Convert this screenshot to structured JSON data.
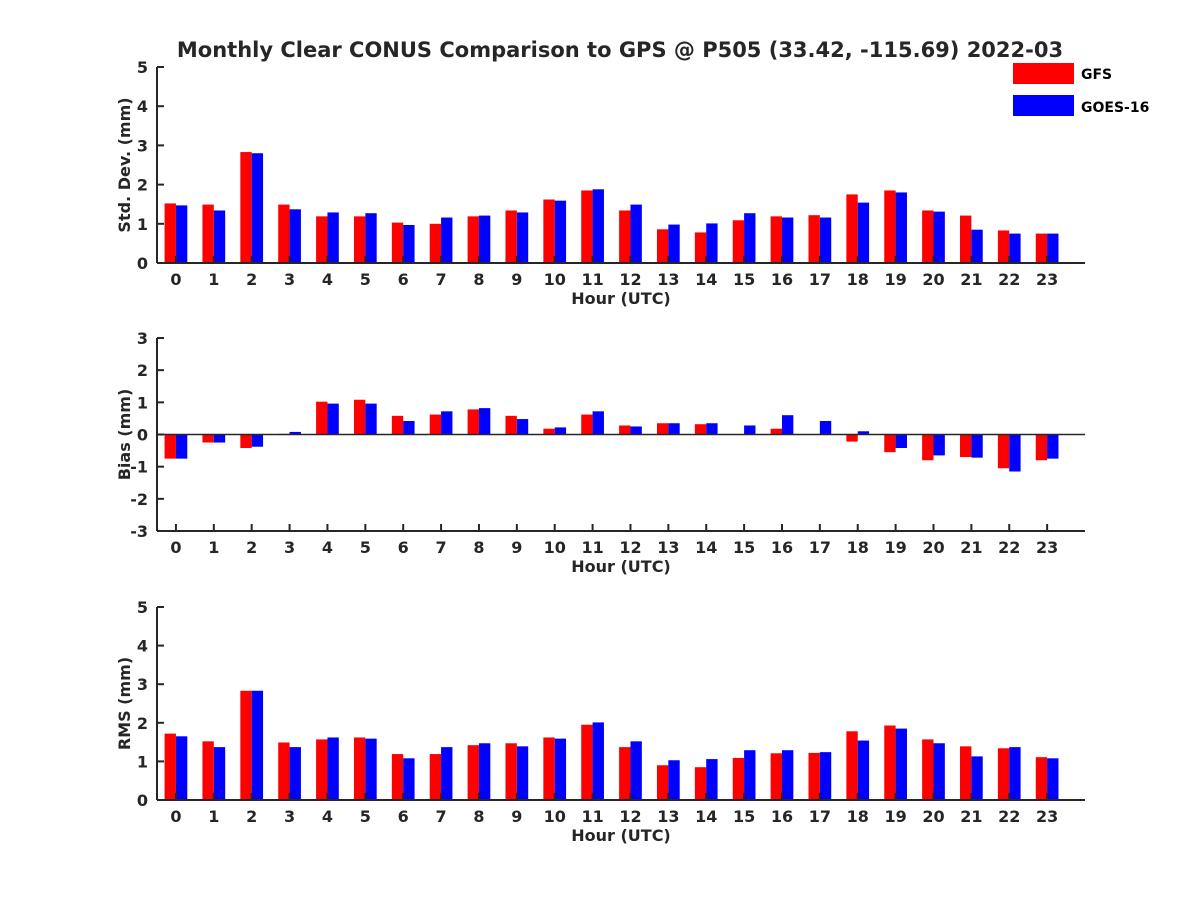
{
  "title": "Monthly Clear CONUS Comparison to GPS @ P505 (33.42, -115.69) 2022-03",
  "legend": {
    "placement": "top-right",
    "items": [
      {
        "label": "GFS",
        "color": "#ff0000"
      },
      {
        "label": "GOES-16",
        "color": "#0000ff"
      }
    ]
  },
  "chart_data": [
    {
      "type": "bar",
      "xlabel": "Hour (UTC)",
      "ylabel": "Std. Dev. (mm)",
      "ylim": [
        0,
        5
      ],
      "yticks": [
        0,
        1,
        2,
        3,
        4,
        5
      ],
      "grid": false,
      "categories": [
        "0",
        "1",
        "2",
        "3",
        "4",
        "5",
        "6",
        "7",
        "8",
        "9",
        "10",
        "11",
        "12",
        "13",
        "14",
        "15",
        "16",
        "17",
        "18",
        "19",
        "20",
        "21",
        "22",
        "23"
      ],
      "series": [
        {
          "name": "GFS",
          "color": "#ff0000",
          "values": [
            1.52,
            1.49,
            2.83,
            1.49,
            1.19,
            1.19,
            1.03,
            1.0,
            1.19,
            1.34,
            1.62,
            1.85,
            1.34,
            0.86,
            0.78,
            1.09,
            1.19,
            1.22,
            1.75,
            1.85,
            1.34,
            1.21,
            0.83,
            0.75
          ]
        },
        {
          "name": "GOES-16",
          "color": "#0000ff",
          "values": [
            1.47,
            1.34,
            2.8,
            1.37,
            1.29,
            1.27,
            0.97,
            1.16,
            1.21,
            1.29,
            1.59,
            1.88,
            1.49,
            0.98,
            1.01,
            1.27,
            1.16,
            1.16,
            1.54,
            1.8,
            1.31,
            0.85,
            0.75,
            0.75
          ]
        }
      ]
    },
    {
      "type": "bar",
      "xlabel": "Hour (UTC)",
      "ylabel": "Bias (mm)",
      "ylim": [
        -3,
        3
      ],
      "yticks": [
        -3,
        -2,
        -1,
        0,
        1,
        2,
        3
      ],
      "grid": false,
      "categories": [
        "0",
        "1",
        "2",
        "3",
        "4",
        "5",
        "6",
        "7",
        "8",
        "9",
        "10",
        "11",
        "12",
        "13",
        "14",
        "15",
        "16",
        "17",
        "18",
        "19",
        "20",
        "21",
        "22",
        "23"
      ],
      "series": [
        {
          "name": "GFS",
          "color": "#ff0000",
          "values": [
            -0.75,
            -0.25,
            -0.42,
            0.02,
            1.02,
            1.08,
            0.58,
            0.62,
            0.78,
            0.58,
            0.18,
            0.62,
            0.28,
            0.35,
            0.32,
            0.0,
            0.18,
            0.0,
            -0.22,
            -0.55,
            -0.8,
            -0.7,
            -1.05,
            -0.8
          ]
        },
        {
          "name": "GOES-16",
          "color": "#0000ff",
          "values": [
            -0.75,
            -0.25,
            -0.38,
            0.08,
            0.96,
            0.96,
            0.42,
            0.72,
            0.82,
            0.48,
            0.22,
            0.72,
            0.25,
            0.35,
            0.35,
            0.28,
            0.6,
            0.42,
            0.1,
            -0.42,
            -0.65,
            -0.72,
            -1.15,
            -0.75
          ]
        }
      ]
    },
    {
      "type": "bar",
      "xlabel": "Hour (UTC)",
      "ylabel": "RMS (mm)",
      "ylim": [
        0,
        5
      ],
      "yticks": [
        0,
        1,
        2,
        3,
        4,
        5
      ],
      "grid": false,
      "categories": [
        "0",
        "1",
        "2",
        "3",
        "4",
        "5",
        "6",
        "7",
        "8",
        "9",
        "10",
        "11",
        "12",
        "13",
        "14",
        "15",
        "16",
        "17",
        "18",
        "19",
        "20",
        "21",
        "22",
        "23"
      ],
      "series": [
        {
          "name": "GFS",
          "color": "#ff0000",
          "values": [
            1.72,
            1.52,
            2.83,
            1.49,
            1.57,
            1.62,
            1.19,
            1.19,
            1.42,
            1.47,
            1.62,
            1.95,
            1.37,
            0.9,
            0.85,
            1.09,
            1.21,
            1.22,
            1.78,
            1.93,
            1.57,
            1.39,
            1.34,
            1.11
          ]
        },
        {
          "name": "GOES-16",
          "color": "#0000ff",
          "values": [
            1.65,
            1.37,
            2.83,
            1.37,
            1.62,
            1.59,
            1.08,
            1.37,
            1.47,
            1.39,
            1.59,
            2.01,
            1.52,
            1.03,
            1.06,
            1.29,
            1.29,
            1.24,
            1.54,
            1.85,
            1.47,
            1.13,
            1.37,
            1.08
          ]
        }
      ]
    }
  ]
}
